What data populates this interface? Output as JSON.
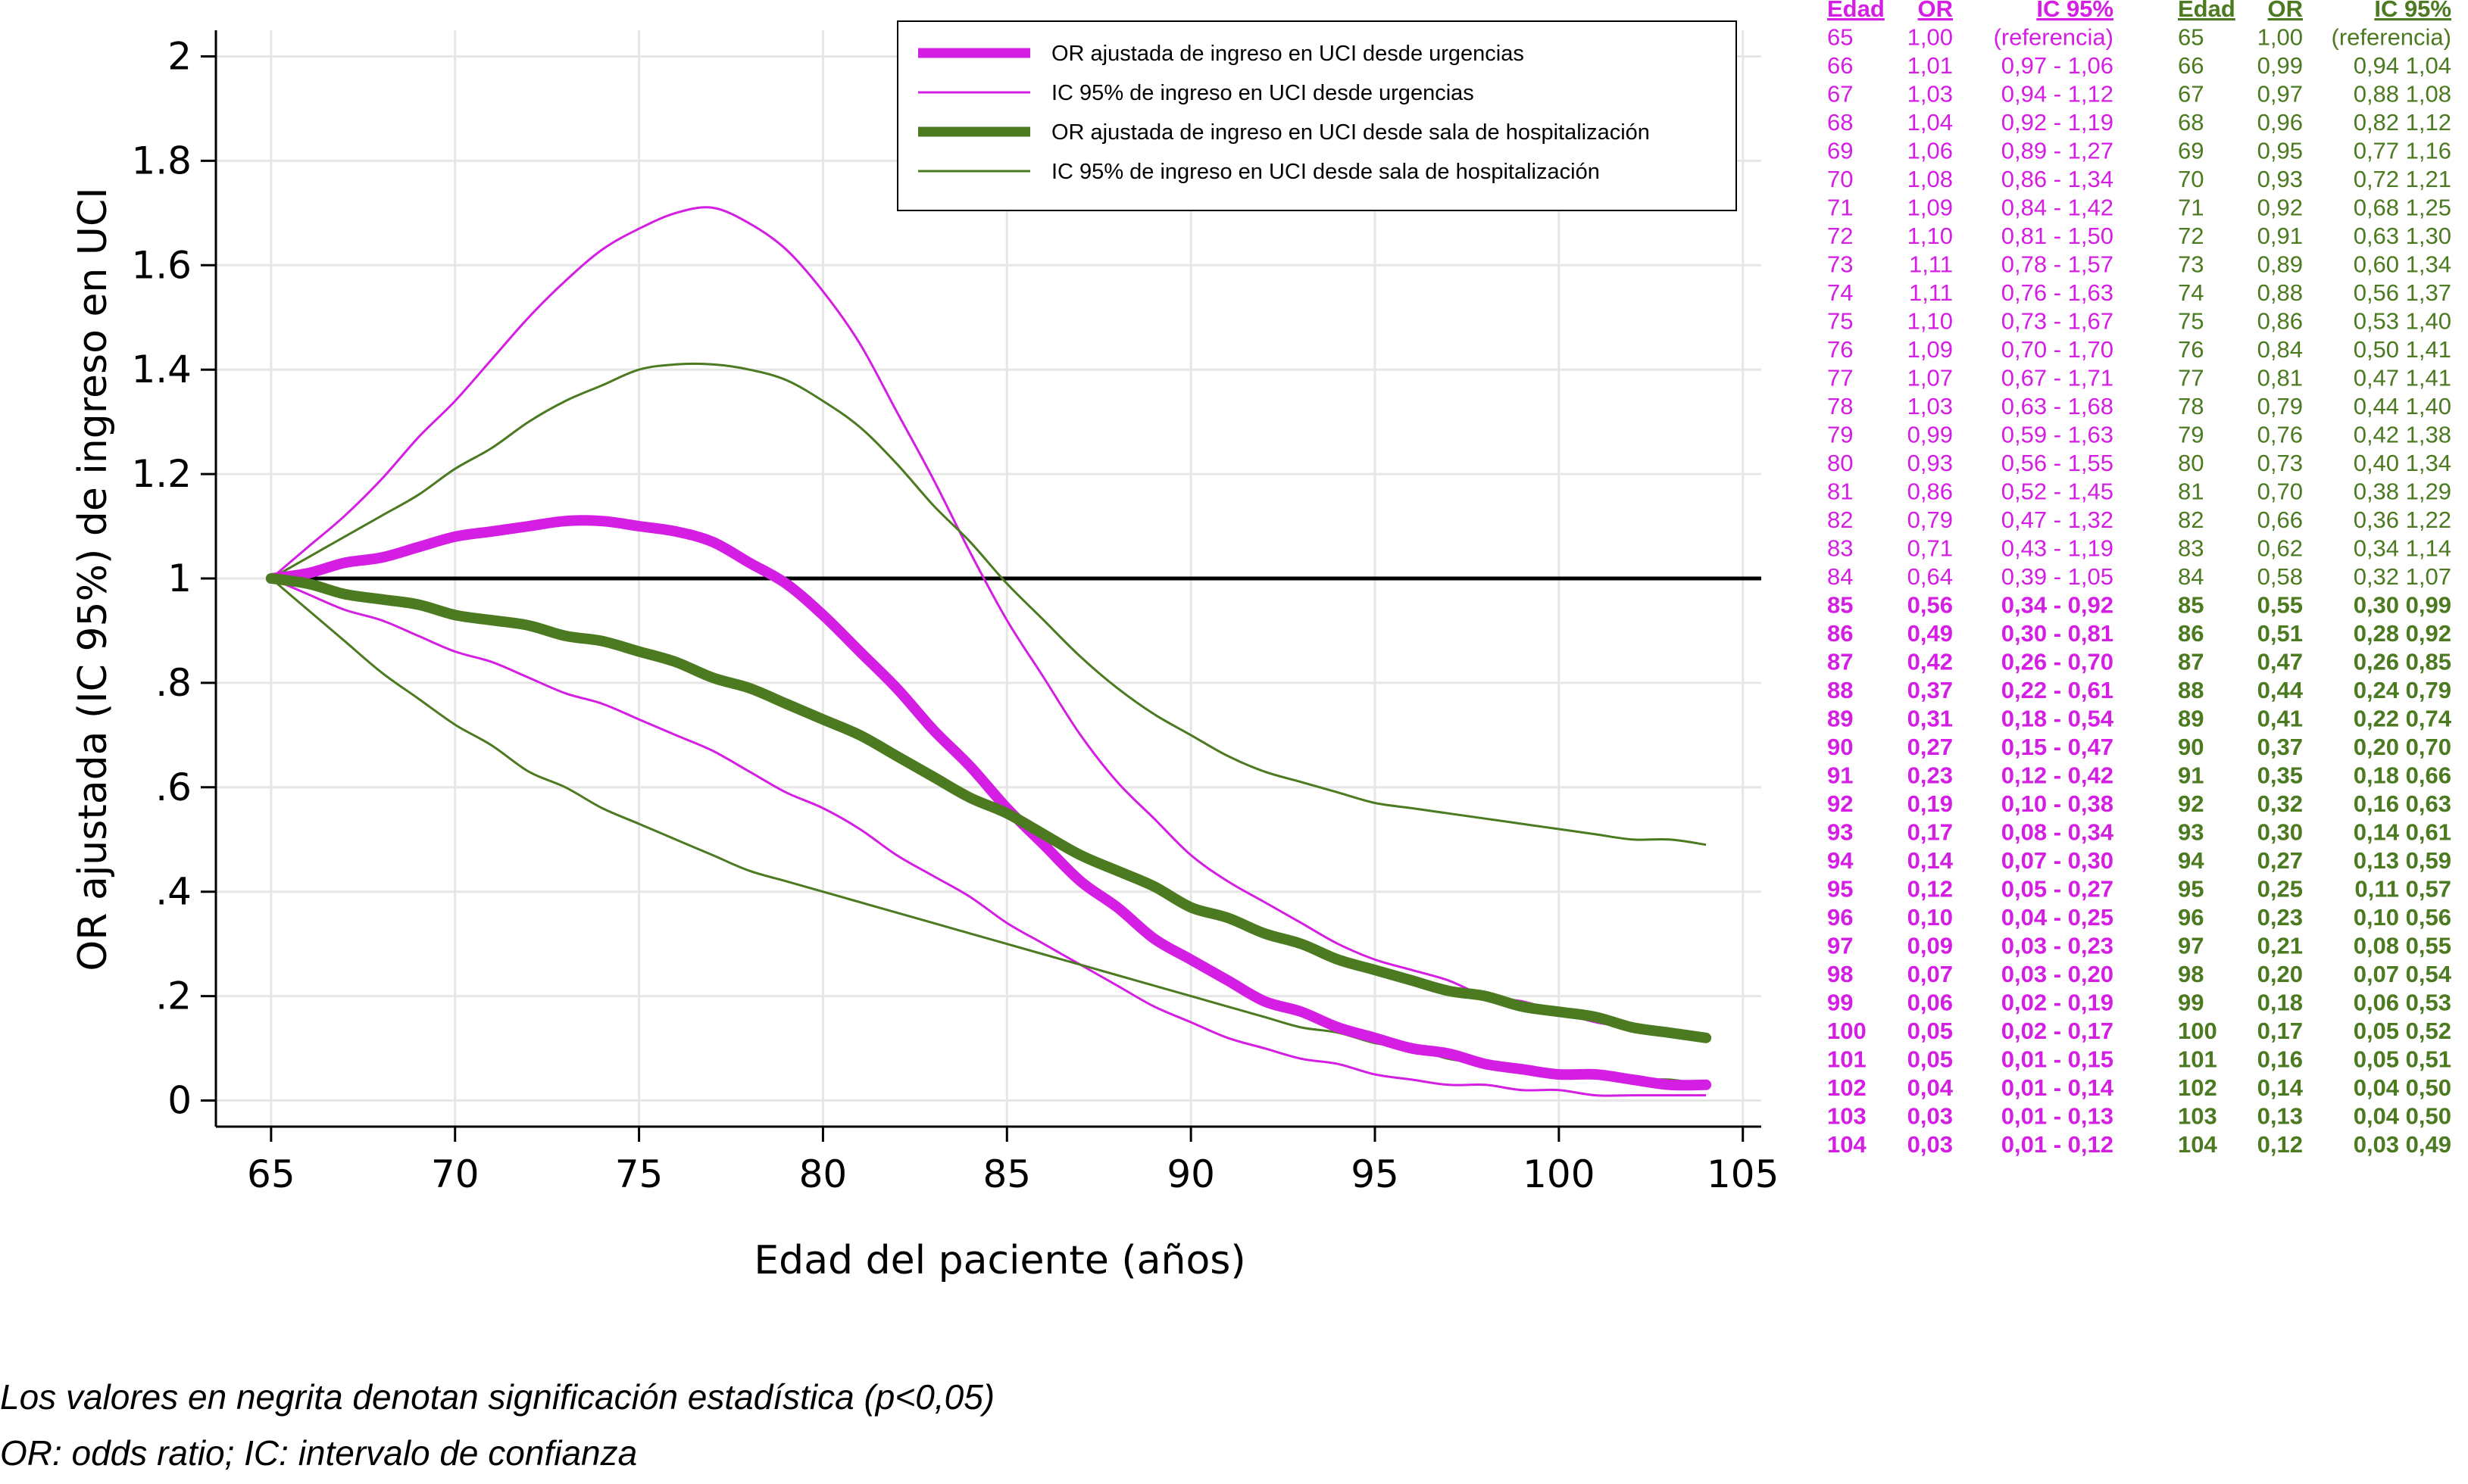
{
  "colors": {
    "urgencias": "#d51ee3",
    "sala": "#4b7a20",
    "reference_line": "#000000",
    "grid": "#e6e6e6"
  },
  "chart_data": {
    "type": "line",
    "xlabel": "Edad del paciente (años)",
    "ylabel": "OR ajustada (IC 95%) de ingreso en UCI",
    "xlim": [
      63.5,
      105.5
    ],
    "ylim": [
      -0.05,
      2.05
    ],
    "x_ticks": [
      65,
      70,
      75,
      80,
      85,
      90,
      95,
      100,
      105
    ],
    "y_ticks": [
      0,
      0.2,
      0.4,
      0.6,
      0.8,
      1,
      1.2,
      1.4,
      1.6,
      1.8,
      2
    ],
    "y_tick_labels": [
      "0",
      ".2",
      ".4",
      ".6",
      ".8",
      "1",
      "1.2",
      "1.4",
      "1.6",
      "1.8",
      "2"
    ],
    "grid": true,
    "reference_y": 1,
    "legend_position": "top-right",
    "x": [
      65,
      66,
      67,
      68,
      69,
      70,
      71,
      72,
      73,
      74,
      75,
      76,
      77,
      78,
      79,
      80,
      81,
      82,
      83,
      84,
      85,
      86,
      87,
      88,
      89,
      90,
      91,
      92,
      93,
      94,
      95,
      96,
      97,
      98,
      99,
      100,
      101,
      102,
      103,
      104
    ],
    "series": [
      {
        "name": "OR ajustada de ingreso en UCI desde urgencias",
        "group": "urgencias",
        "style": "thick",
        "values": [
          1.0,
          1.01,
          1.03,
          1.04,
          1.06,
          1.08,
          1.09,
          1.1,
          1.11,
          1.11,
          1.1,
          1.09,
          1.07,
          1.03,
          0.99,
          0.93,
          0.86,
          0.79,
          0.71,
          0.64,
          0.56,
          0.49,
          0.42,
          0.37,
          0.31,
          0.27,
          0.23,
          0.19,
          0.17,
          0.14,
          0.12,
          0.1,
          0.09,
          0.07,
          0.06,
          0.05,
          0.05,
          0.04,
          0.03,
          0.03
        ]
      },
      {
        "name": "IC 95% de ingreso en UCI desde urgencias",
        "group": "urgencias",
        "style": "thin",
        "lower": [
          1.0,
          0.97,
          0.94,
          0.92,
          0.89,
          0.86,
          0.84,
          0.81,
          0.78,
          0.76,
          0.73,
          0.7,
          0.67,
          0.63,
          0.59,
          0.56,
          0.52,
          0.47,
          0.43,
          0.39,
          0.34,
          0.3,
          0.26,
          0.22,
          0.18,
          0.15,
          0.12,
          0.1,
          0.08,
          0.07,
          0.05,
          0.04,
          0.03,
          0.03,
          0.02,
          0.02,
          0.01,
          0.01,
          0.01,
          0.01
        ],
        "upper": [
          1.0,
          1.06,
          1.12,
          1.19,
          1.27,
          1.34,
          1.42,
          1.5,
          1.57,
          1.63,
          1.67,
          1.7,
          1.71,
          1.68,
          1.63,
          1.55,
          1.45,
          1.32,
          1.19,
          1.05,
          0.92,
          0.81,
          0.7,
          0.61,
          0.54,
          0.47,
          0.42,
          0.38,
          0.34,
          0.3,
          0.27,
          0.25,
          0.23,
          0.2,
          0.19,
          0.17,
          0.15,
          0.14,
          0.13,
          0.12
        ]
      },
      {
        "name": "OR ajustada de ingreso en UCI desde sala de hospitalización",
        "group": "sala",
        "style": "thick",
        "values": [
          1.0,
          0.99,
          0.97,
          0.96,
          0.95,
          0.93,
          0.92,
          0.91,
          0.89,
          0.88,
          0.86,
          0.84,
          0.81,
          0.79,
          0.76,
          0.73,
          0.7,
          0.66,
          0.62,
          0.58,
          0.55,
          0.51,
          0.47,
          0.44,
          0.41,
          0.37,
          0.35,
          0.32,
          0.3,
          0.27,
          0.25,
          0.23,
          0.21,
          0.2,
          0.18,
          0.17,
          0.16,
          0.14,
          0.13,
          0.12
        ]
      },
      {
        "name": "IC 95% de ingreso en UCI desde sala de hospitalización",
        "group": "sala",
        "style": "thin",
        "lower": [
          1.0,
          0.94,
          0.88,
          0.82,
          0.77,
          0.72,
          0.68,
          0.63,
          0.6,
          0.56,
          0.53,
          0.5,
          0.47,
          0.44,
          0.42,
          0.4,
          0.38,
          0.36,
          0.34,
          0.32,
          0.3,
          0.28,
          0.26,
          0.24,
          0.22,
          0.2,
          0.18,
          0.16,
          0.14,
          0.13,
          0.11,
          0.1,
          0.08,
          0.07,
          0.06,
          0.05,
          0.05,
          0.04,
          0.04,
          0.03
        ],
        "upper": [
          1.0,
          1.04,
          1.08,
          1.12,
          1.16,
          1.21,
          1.25,
          1.3,
          1.34,
          1.37,
          1.4,
          1.41,
          1.41,
          1.4,
          1.38,
          1.34,
          1.29,
          1.22,
          1.14,
          1.07,
          0.99,
          0.92,
          0.85,
          0.79,
          0.74,
          0.7,
          0.66,
          0.63,
          0.61,
          0.59,
          0.57,
          0.56,
          0.55,
          0.54,
          0.53,
          0.52,
          0.51,
          0.5,
          0.5,
          0.49
        ]
      }
    ]
  },
  "tables": {
    "urgencias": {
      "headers": [
        "Edad",
        "OR",
        "IC 95%"
      ],
      "significant_from_row": 20,
      "rows": [
        [
          "65",
          "1,00",
          "(referencia)"
        ],
        [
          "66",
          "1,01",
          "0,97 - 1,06"
        ],
        [
          "67",
          "1,03",
          "0,94 - 1,12"
        ],
        [
          "68",
          "1,04",
          "0,92 - 1,19"
        ],
        [
          "69",
          "1,06",
          "0,89 - 1,27"
        ],
        [
          "70",
          "1,08",
          "0,86 - 1,34"
        ],
        [
          "71",
          "1,09",
          "0,84 - 1,42"
        ],
        [
          "72",
          "1,10",
          "0,81 - 1,50"
        ],
        [
          "73",
          "1,11",
          "0,78 - 1,57"
        ],
        [
          "74",
          "1,11",
          "0,76 - 1,63"
        ],
        [
          "75",
          "1,10",
          "0,73 - 1,67"
        ],
        [
          "76",
          "1,09",
          "0,70 - 1,70"
        ],
        [
          "77",
          "1,07",
          "0,67 - 1,71"
        ],
        [
          "78",
          "1,03",
          "0,63 - 1,68"
        ],
        [
          "79",
          "0,99",
          "0,59 - 1,63"
        ],
        [
          "80",
          "0,93",
          "0,56 - 1,55"
        ],
        [
          "81",
          "0,86",
          "0,52 - 1,45"
        ],
        [
          "82",
          "0,79",
          "0,47 - 1,32"
        ],
        [
          "83",
          "0,71",
          "0,43 - 1,19"
        ],
        [
          "84",
          "0,64",
          "0,39 - 1,05"
        ],
        [
          "85",
          "0,56",
          "0,34 - 0,92"
        ],
        [
          "86",
          "0,49",
          "0,30 - 0,81"
        ],
        [
          "87",
          "0,42",
          "0,26 - 0,70"
        ],
        [
          "88",
          "0,37",
          "0,22 - 0,61"
        ],
        [
          "89",
          "0,31",
          "0,18 - 0,54"
        ],
        [
          "90",
          "0,27",
          "0,15 - 0,47"
        ],
        [
          "91",
          "0,23",
          "0,12 - 0,42"
        ],
        [
          "92",
          "0,19",
          "0,10 - 0,38"
        ],
        [
          "93",
          "0,17",
          "0,08 - 0,34"
        ],
        [
          "94",
          "0,14",
          "0,07 - 0,30"
        ],
        [
          "95",
          "0,12",
          "0,05 - 0,27"
        ],
        [
          "96",
          "0,10",
          "0,04 - 0,25"
        ],
        [
          "97",
          "0,09",
          "0,03 - 0,23"
        ],
        [
          "98",
          "0,07",
          "0,03 - 0,20"
        ],
        [
          "99",
          "0,06",
          "0,02 - 0,19"
        ],
        [
          "100",
          "0,05",
          "0,02 - 0,17"
        ],
        [
          "101",
          "0,05",
          "0,01 - 0,15"
        ],
        [
          "102",
          "0,04",
          "0,01 - 0,14"
        ],
        [
          "103",
          "0,03",
          "0,01 - 0,13"
        ],
        [
          "104",
          "0,03",
          "0,01 - 0,12"
        ]
      ]
    },
    "sala": {
      "headers": [
        "Edad",
        "OR",
        "IC 95%"
      ],
      "significant_from_row": 20,
      "rows": [
        [
          "65",
          "1,00",
          "(referencia)"
        ],
        [
          "66",
          "0,99",
          "0,94 1,04"
        ],
        [
          "67",
          "0,97",
          "0,88 1,08"
        ],
        [
          "68",
          "0,96",
          "0,82 1,12"
        ],
        [
          "69",
          "0,95",
          "0,77 1,16"
        ],
        [
          "70",
          "0,93",
          "0,72 1,21"
        ],
        [
          "71",
          "0,92",
          "0,68 1,25"
        ],
        [
          "72",
          "0,91",
          "0,63 1,30"
        ],
        [
          "73",
          "0,89",
          "0,60 1,34"
        ],
        [
          "74",
          "0,88",
          "0,56 1,37"
        ],
        [
          "75",
          "0,86",
          "0,53 1,40"
        ],
        [
          "76",
          "0,84",
          "0,50 1,41"
        ],
        [
          "77",
          "0,81",
          "0,47 1,41"
        ],
        [
          "78",
          "0,79",
          "0,44 1,40"
        ],
        [
          "79",
          "0,76",
          "0,42 1,38"
        ],
        [
          "80",
          "0,73",
          "0,40 1,34"
        ],
        [
          "81",
          "0,70",
          "0,38 1,29"
        ],
        [
          "82",
          "0,66",
          "0,36 1,22"
        ],
        [
          "83",
          "0,62",
          "0,34 1,14"
        ],
        [
          "84",
          "0,58",
          "0,32 1,07"
        ],
        [
          "85",
          "0,55",
          "0,30 0,99"
        ],
        [
          "86",
          "0,51",
          "0,28 0,92"
        ],
        [
          "87",
          "0,47",
          "0,26 0,85"
        ],
        [
          "88",
          "0,44",
          "0,24 0,79"
        ],
        [
          "89",
          "0,41",
          "0,22 0,74"
        ],
        [
          "90",
          "0,37",
          "0,20 0,70"
        ],
        [
          "91",
          "0,35",
          "0,18 0,66"
        ],
        [
          "92",
          "0,32",
          "0,16 0,63"
        ],
        [
          "93",
          "0,30",
          "0,14 0,61"
        ],
        [
          "94",
          "0,27",
          "0,13 0,59"
        ],
        [
          "95",
          "0,25",
          "0,11 0,57"
        ],
        [
          "96",
          "0,23",
          "0,10 0,56"
        ],
        [
          "97",
          "0,21",
          "0,08 0,55"
        ],
        [
          "98",
          "0,20",
          "0,07 0,54"
        ],
        [
          "99",
          "0,18",
          "0,06 0,53"
        ],
        [
          "100",
          "0,17",
          "0,05 0,52"
        ],
        [
          "101",
          "0,16",
          "0,05 0,51"
        ],
        [
          "102",
          "0,14",
          "0,04 0,50"
        ],
        [
          "103",
          "0,13",
          "0,04 0,50"
        ],
        [
          "104",
          "0,12",
          "0,03 0,49"
        ]
      ]
    }
  },
  "footnotes": [
    "Los valores en negrita denotan significación estadística (p<0,05)",
    "OR: odds ratio; IC: intervalo de confianza"
  ]
}
